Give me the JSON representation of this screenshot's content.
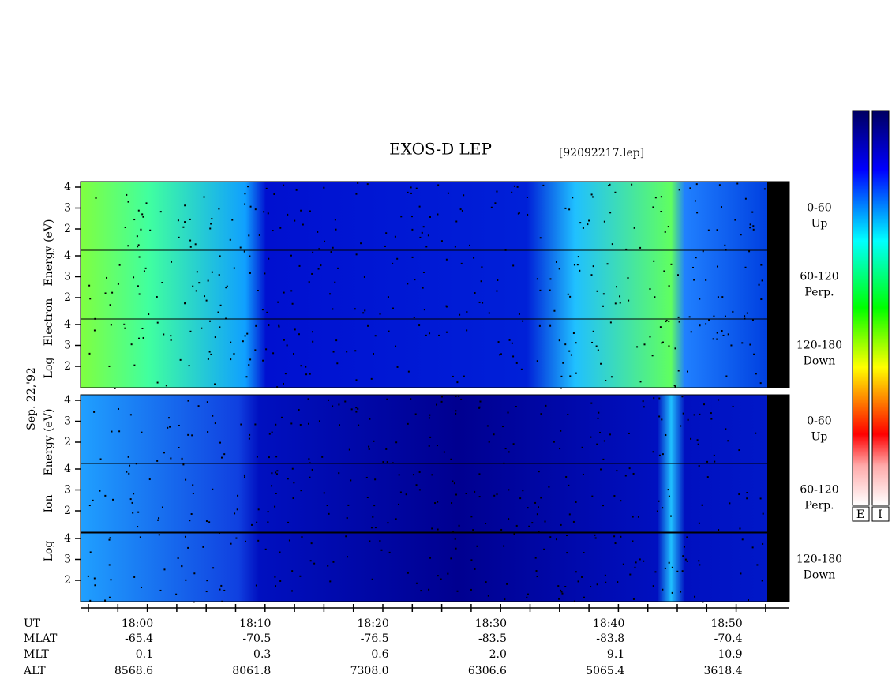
{
  "header": {
    "title": "EXOS-D LEP",
    "file": "[92092217.lep]"
  },
  "date": "Sep. 22,'92",
  "electron_axis": [
    "Log",
    "Electron",
    "Energy (eV)"
  ],
  "ion_axis": [
    "Log",
    "Ion",
    "Energy (eV)"
  ],
  "yticks": [
    4,
    3,
    2
  ],
  "panels": [
    {
      "group": "electron",
      "range": "0-60",
      "dir": "Up"
    },
    {
      "group": "electron",
      "range": "60-120",
      "dir": "Perp."
    },
    {
      "group": "electron",
      "range": "120-180",
      "dir": "Down"
    },
    {
      "group": "ion",
      "range": "0-60",
      "dir": "Up"
    },
    {
      "group": "ion",
      "range": "60-120",
      "dir": "Perp."
    },
    {
      "group": "ion",
      "range": "120-180",
      "dir": "Down"
    }
  ],
  "colorbars": [
    "E",
    "I"
  ],
  "table": {
    "row_labels": [
      "UT",
      "MLAT",
      "MLT",
      "ALT"
    ],
    "ut": [
      "18:00",
      "18:10",
      "18:20",
      "18:30",
      "18:40",
      "18:50"
    ],
    "mlat": [
      "-65.4",
      "-70.5",
      "-76.5",
      "-83.5",
      "-83.8",
      "-70.4"
    ],
    "mlt": [
      "0.1",
      "0.3",
      "0.6",
      "2.0",
      "9.1",
      "10.9"
    ],
    "alt": [
      "8568.6",
      "8061.8",
      "7308.0",
      "6306.6",
      "5065.4",
      "3618.4"
    ]
  }
}
